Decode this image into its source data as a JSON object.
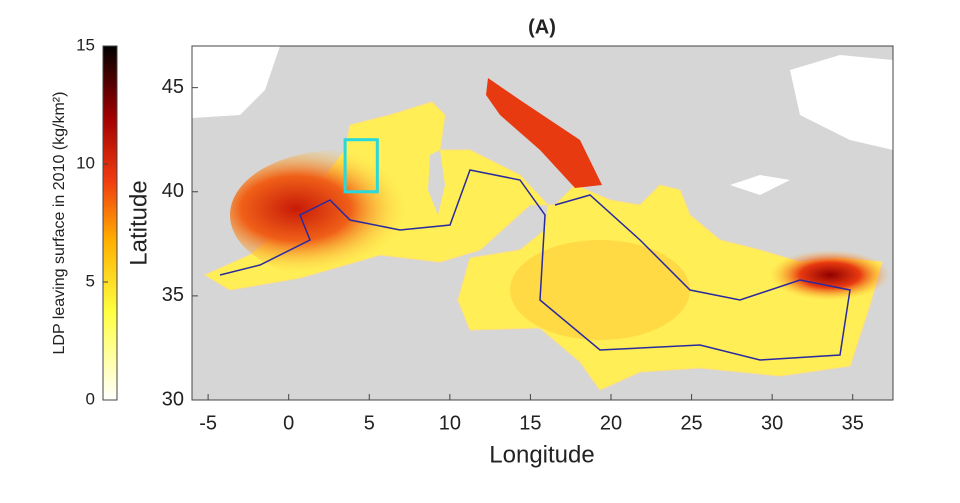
{
  "chart_data": {
    "type": "heatmap-map",
    "title": "(A)",
    "x_label": "Longitude",
    "y_label": "Latitude",
    "colorbar_label": "LDP leaving surface in 2010 (kg/km²)",
    "xlim": [
      -6,
      37.5
    ],
    "xticks": [
      -5,
      0,
      5,
      10,
      15,
      20,
      25,
      30,
      35
    ],
    "ylim": [
      30,
      47
    ],
    "yticks": [
      30,
      35,
      40,
      45
    ],
    "clim": [
      0,
      15
    ],
    "cticks": [
      0,
      5,
      10,
      15
    ],
    "box": {
      "color": "#27d8dc",
      "lon": [
        3.5,
        5.5
      ],
      "lat": [
        40,
        42.5
      ]
    }
  }
}
